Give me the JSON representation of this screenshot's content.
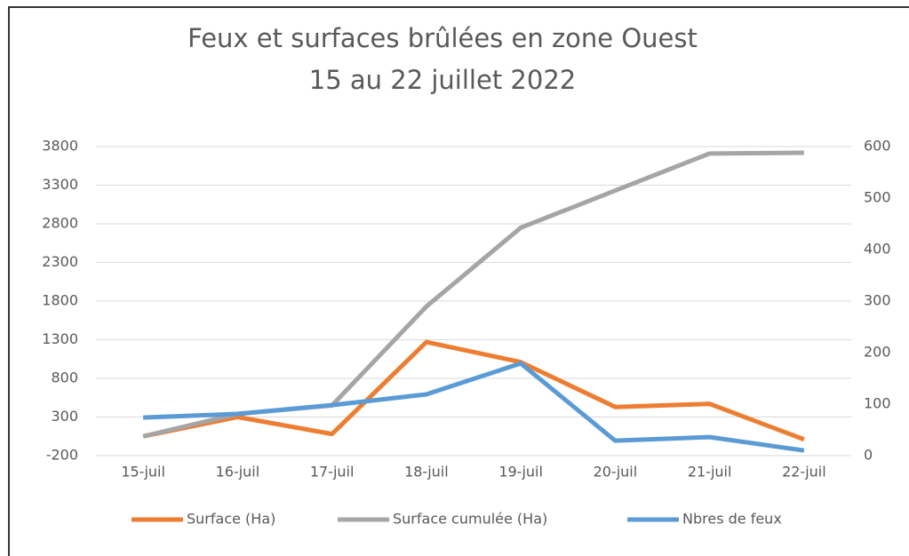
{
  "chart_data": {
    "type": "line",
    "title": "Feux et surfaces brûlées en zone Ouest",
    "subtitle": "15 au 22 juillet 2022",
    "categories": [
      "15-juil",
      "16-juil",
      "17-juil",
      "18-juil",
      "19-juil",
      "20-juil",
      "21-juil",
      "22-juil"
    ],
    "series": [
      {
        "name": "Surface (Ha)",
        "color": "#ed7d31",
        "values": [
          50,
          300,
          80,
          1270,
          1010,
          430,
          470,
          10
        ]
      },
      {
        "name": "Surface cumulée (Ha)",
        "color": "#a5a5a5",
        "values": [
          50,
          340,
          450,
          1730,
          2750,
          3230,
          3710,
          3720
        ]
      },
      {
        "name": "Nbres de feux",
        "color": "#5b9bd5",
        "axis": "y2",
        "values": [
          74,
          81,
          98,
          119,
          179,
          29,
          36,
          10
        ]
      }
    ],
    "ylim": [
      -200,
      3800
    ],
    "yticks": [
      -200,
      300,
      800,
      1300,
      1800,
      2300,
      2800,
      3300,
      3800
    ],
    "y2lim": [
      0,
      600
    ],
    "y2ticks": [
      0,
      100,
      200,
      300,
      400,
      500,
      600
    ],
    "grid": true,
    "legend": "bottom"
  }
}
